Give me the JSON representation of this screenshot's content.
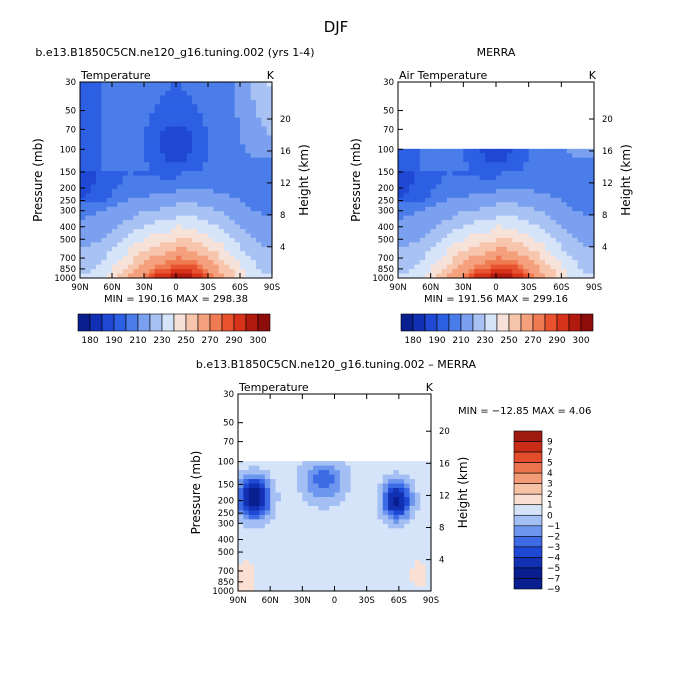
{
  "figure": {
    "title": "DJF",
    "colors": {
      "abs": [
        "#0a1f8f",
        "#1230b4",
        "#1f48d4",
        "#2d5fe3",
        "#4a7de9",
        "#7aa0ef",
        "#a9c2f4",
        "#d6e4fa",
        "#f7e2d9",
        "#f7c5ac",
        "#f5a07c",
        "#f07b52",
        "#e8522e",
        "#d6331a",
        "#b31a0f",
        "#8c0d0a"
      ],
      "diff": [
        "#0a1f8f",
        "#1230b4",
        "#1f48d4",
        "#3d6ae5",
        "#6d96ee",
        "#a3bff4",
        "#d6e4fa",
        "#f9e0d2",
        "#f7c2a6",
        "#f29d77",
        "#ec744c",
        "#e34d2b",
        "#c92d18",
        "#9e1a0f"
      ]
    }
  },
  "chart_data": [
    {
      "type": "heatmap",
      "title": "b.e13.B1850C5CN.ne120_g16.tuning.002 (yrs 1-4)",
      "variable_label": "Temperature",
      "units": "K",
      "ylabel_left": "Pressure (mb)",
      "ylabel_right": "Height (km)",
      "x_ticks": [
        "90N",
        "60N",
        "30N",
        "0",
        "30S",
        "60S",
        "90S"
      ],
      "y_ticks": [
        "30",
        "50",
        "70",
        "100",
        "150",
        "200",
        "250",
        "300",
        "400",
        "500",
        "700",
        "850",
        "1000"
      ],
      "height_ticks": [
        "20",
        "16",
        "12",
        "8",
        "4"
      ],
      "stats": "MIN = 190.16    MAX = 298.38",
      "min": 190.16,
      "max": 298.38,
      "data_top_mb": 30,
      "colorbar_labels": [
        "180",
        "190",
        "210",
        "230",
        "250",
        "270",
        "290",
        "300"
      ]
    },
    {
      "type": "heatmap",
      "title": "MERRA",
      "variable_label": "Air Temperature",
      "units": "K",
      "ylabel_left": "Pressure (mb)",
      "ylabel_right": "Height (km)",
      "x_ticks": [
        "90N",
        "60N",
        "30N",
        "0",
        "30S",
        "60S",
        "90S"
      ],
      "y_ticks": [
        "30",
        "50",
        "70",
        "100",
        "150",
        "200",
        "250",
        "300",
        "400",
        "500",
        "700",
        "850",
        "1000"
      ],
      "height_ticks": [
        "20",
        "16",
        "12",
        "8",
        "4"
      ],
      "stats": "MIN = 191.56    MAX = 299.16",
      "min": 191.56,
      "max": 299.16,
      "data_top_mb": 100,
      "colorbar_labels": [
        "180",
        "190",
        "210",
        "230",
        "250",
        "270",
        "290",
        "300"
      ]
    },
    {
      "type": "heatmap",
      "title": "b.e13.B1850C5CN.ne120_g16.tuning.002 – MERRA",
      "variable_label": "Temperature",
      "units": "K",
      "ylabel_left": "Pressure (mb)",
      "ylabel_right": "Height (km)",
      "x_ticks": [
        "90N",
        "60N",
        "30N",
        "0",
        "30S",
        "60S",
        "90S"
      ],
      "y_ticks": [
        "30",
        "50",
        "70",
        "100",
        "150",
        "200",
        "250",
        "300",
        "400",
        "500",
        "700",
        "850",
        "1000"
      ],
      "height_ticks": [
        "20",
        "16",
        "12",
        "8",
        "4"
      ],
      "stats": "MIN = −12.85   MAX =    4.06",
      "min": -12.85,
      "max": 4.06,
      "data_top_mb": 100,
      "colorbar_labels": [
        "9",
        "7",
        "5",
        "4",
        "3",
        "2",
        "1",
        "0",
        "−1",
        "−2",
        "−3",
        "−4",
        "−5",
        "−7",
        "−9"
      ]
    }
  ]
}
